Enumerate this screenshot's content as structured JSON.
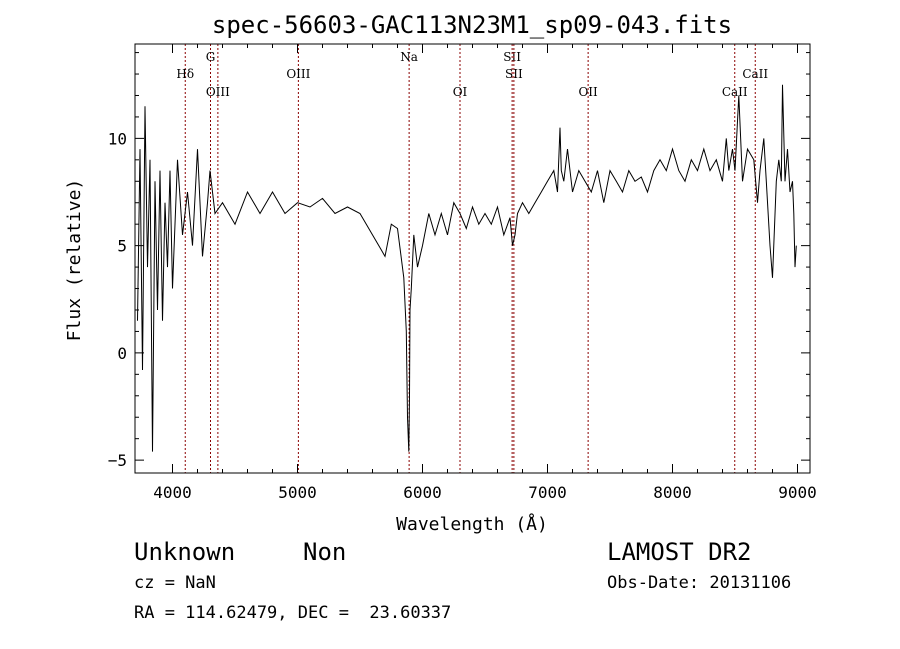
{
  "chart_data": {
    "type": "line",
    "title": "spec-56603-GAC113N23M1_sp09-043.fits",
    "xlabel": "Wavelength (Å)",
    "ylabel": "Flux (relative)",
    "xlim": [
      3700,
      9100
    ],
    "ylim": [
      -5.6,
      14.4
    ],
    "xticks": [
      4000,
      5000,
      6000,
      7000,
      8000,
      9000
    ],
    "yticks": [
      -5,
      0,
      5,
      10
    ],
    "grid": false,
    "line_color": "#000000",
    "marker_color": "#8b0000",
    "series": [
      {
        "x": [
          3720,
          3740,
          3760,
          3780,
          3800,
          3820,
          3840,
          3860,
          3880,
          3900,
          3920,
          3940,
          3960,
          3980,
          4000,
          4040,
          4080,
          4120,
          4160,
          4200,
          4240,
          4280,
          4300,
          4340,
          4400,
          4500,
          4600,
          4700,
          4800,
          4900,
          5000,
          5100,
          5200,
          5300,
          5400,
          5500,
          5550,
          5600,
          5650,
          5700,
          5750,
          5800,
          5850,
          5870,
          5880,
          5890,
          5896,
          5900,
          5910,
          5930,
          5960,
          6000,
          6050,
          6100,
          6150,
          6200,
          6250,
          6300,
          6350,
          6400,
          6450,
          6500,
          6550,
          6600,
          6650,
          6700,
          6720,
          6740,
          6760,
          6800,
          6850,
          6900,
          6950,
          7000,
          7050,
          7080,
          7100,
          7110,
          7130,
          7160,
          7200,
          7250,
          7300,
          7350,
          7400,
          7450,
          7500,
          7550,
          7600,
          7650,
          7700,
          7750,
          7800,
          7850,
          7900,
          7950,
          8000,
          8050,
          8100,
          8150,
          8200,
          8250,
          8300,
          8350,
          8400,
          8430,
          8450,
          8480,
          8500,
          8530,
          8560,
          8600,
          8650,
          8680,
          8700,
          8730,
          8750,
          8780,
          8800,
          8830,
          8850,
          8870,
          8880,
          8900,
          8920,
          8940,
          8960,
          8970,
          8980,
          8990
        ],
        "y": [
          1.5,
          9.5,
          -0.8,
          11.5,
          4.0,
          9.0,
          -4.6,
          8.0,
          2.0,
          8.5,
          1.5,
          7.0,
          4.0,
          8.5,
          3.0,
          9.0,
          5.5,
          7.5,
          5.0,
          9.5,
          4.5,
          7.0,
          8.5,
          6.5,
          7.0,
          6.0,
          7.5,
          6.5,
          7.5,
          6.5,
          7.0,
          6.8,
          7.2,
          6.5,
          6.8,
          6.5,
          6.0,
          5.5,
          5.0,
          4.5,
          6.0,
          5.8,
          3.5,
          1.0,
          -3.0,
          -4.6,
          -2.0,
          2.0,
          3.0,
          5.5,
          4.0,
          5.0,
          6.5,
          5.5,
          6.5,
          5.5,
          7.0,
          6.5,
          5.8,
          6.8,
          6.0,
          6.5,
          6.0,
          6.8,
          5.5,
          6.3,
          5.0,
          5.5,
          6.5,
          7.0,
          6.5,
          7.0,
          7.5,
          8.0,
          8.5,
          7.5,
          10.5,
          8.5,
          8.0,
          9.5,
          7.5,
          8.5,
          8.0,
          7.5,
          8.5,
          7.0,
          8.5,
          8.0,
          7.5,
          8.5,
          8.0,
          8.2,
          7.5,
          8.5,
          9.0,
          8.5,
          9.5,
          8.5,
          8.0,
          9.0,
          8.5,
          9.5,
          8.5,
          9.0,
          8.0,
          10.0,
          8.5,
          9.5,
          8.5,
          12.0,
          8.0,
          9.5,
          9.0,
          7.0,
          8.5,
          10.0,
          8.0,
          5.0,
          3.5,
          8.0,
          9.0,
          8.0,
          12.5,
          8.0,
          9.5,
          7.5,
          8.0,
          6.5,
          4.0,
          5.0
        ]
      }
    ],
    "line_markers": [
      {
        "wavelength": 4102,
        "label": "Hδ",
        "row": 1
      },
      {
        "wavelength": 4304,
        "label": "G",
        "row": 0
      },
      {
        "wavelength": 4363,
        "label": "OIII",
        "row": 2
      },
      {
        "wavelength": 5007,
        "label": "OIII",
        "row": 1
      },
      {
        "wavelength": 5893,
        "label": "Na",
        "row": 0
      },
      {
        "wavelength": 6300,
        "label": "OI",
        "row": 2
      },
      {
        "wavelength": 6717,
        "label": "SII",
        "row": 0
      },
      {
        "wavelength": 6731,
        "label": "SII",
        "row": 1
      },
      {
        "wavelength": 7325,
        "label": "OII",
        "row": 2
      },
      {
        "wavelength": 8498,
        "label": "CaII",
        "row": 2
      },
      {
        "wavelength": 8662,
        "label": "CaII",
        "row": 1
      }
    ]
  },
  "footer": {
    "object_type": "Unknown",
    "object_subclass": "Non",
    "redshift_line": "cz = NaN",
    "coords_line": "RA = 114.62479, DEC =  23.60337",
    "survey": "LAMOST DR2",
    "obs_date_line": "Obs-Date: 20131106"
  }
}
